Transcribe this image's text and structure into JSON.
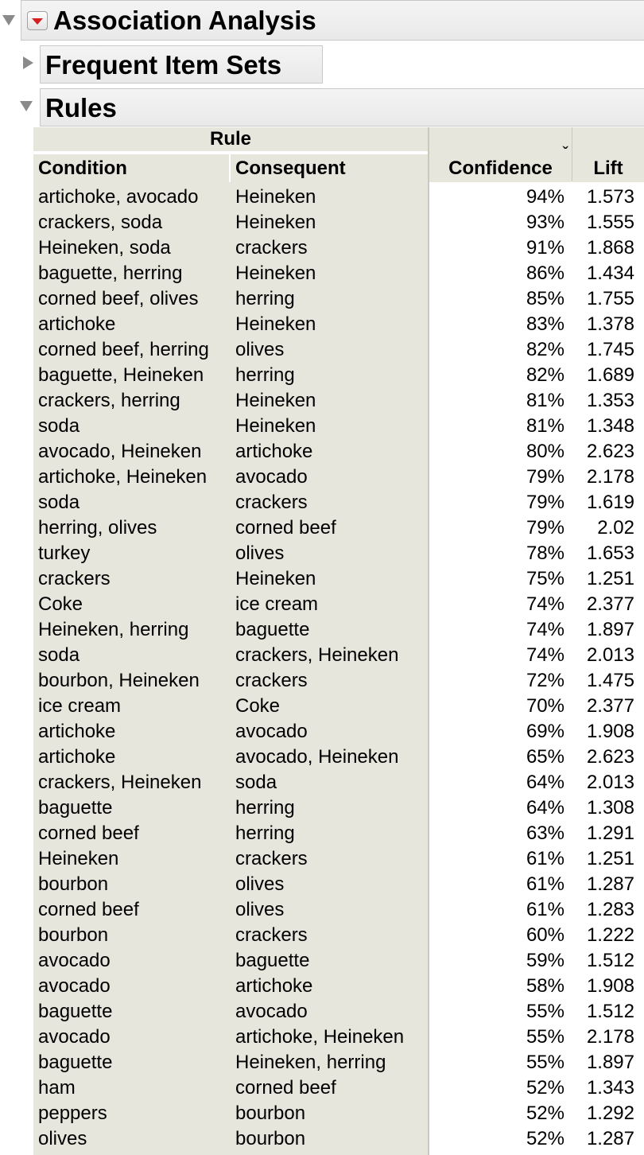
{
  "report": {
    "title": "Association Analysis",
    "sections": {
      "frequent_item_sets": "Frequent Item Sets",
      "rules": "Rules"
    }
  },
  "table": {
    "group_header": "Rule",
    "columns": {
      "condition": "Condition",
      "consequent": "Consequent",
      "confidence": "Confidence",
      "lift": "Lift"
    },
    "sort_indicator": "ˇ",
    "rows": [
      {
        "condition": "artichoke, avocado",
        "consequent": "Heineken",
        "confidence": "94%",
        "lift": "1.573"
      },
      {
        "condition": "crackers, soda",
        "consequent": "Heineken",
        "confidence": "93%",
        "lift": "1.555"
      },
      {
        "condition": "Heineken, soda",
        "consequent": "crackers",
        "confidence": "91%",
        "lift": "1.868"
      },
      {
        "condition": "baguette, herring",
        "consequent": "Heineken",
        "confidence": "86%",
        "lift": "1.434"
      },
      {
        "condition": "corned beef, olives",
        "consequent": "herring",
        "confidence": "85%",
        "lift": "1.755"
      },
      {
        "condition": "artichoke",
        "consequent": "Heineken",
        "confidence": "83%",
        "lift": "1.378"
      },
      {
        "condition": "corned beef, herring",
        "consequent": "olives",
        "confidence": "82%",
        "lift": "1.745"
      },
      {
        "condition": "baguette, Heineken",
        "consequent": "herring",
        "confidence": "82%",
        "lift": "1.689"
      },
      {
        "condition": "crackers, herring",
        "consequent": "Heineken",
        "confidence": "81%",
        "lift": "1.353"
      },
      {
        "condition": "soda",
        "consequent": "Heineken",
        "confidence": "81%",
        "lift": "1.348"
      },
      {
        "condition": "avocado, Heineken",
        "consequent": "artichoke",
        "confidence": "80%",
        "lift": "2.623"
      },
      {
        "condition": "artichoke, Heineken",
        "consequent": "avocado",
        "confidence": "79%",
        "lift": "2.178"
      },
      {
        "condition": "soda",
        "consequent": "crackers",
        "confidence": "79%",
        "lift": "1.619"
      },
      {
        "condition": "herring, olives",
        "consequent": "corned beef",
        "confidence": "79%",
        "lift": "2.02"
      },
      {
        "condition": "turkey",
        "consequent": "olives",
        "confidence": "78%",
        "lift": "1.653"
      },
      {
        "condition": "crackers",
        "consequent": "Heineken",
        "confidence": "75%",
        "lift": "1.251"
      },
      {
        "condition": "Coke",
        "consequent": "ice cream",
        "confidence": "74%",
        "lift": "2.377"
      },
      {
        "condition": "Heineken, herring",
        "consequent": "baguette",
        "confidence": "74%",
        "lift": "1.897"
      },
      {
        "condition": "soda",
        "consequent": "crackers, Heineken",
        "confidence": "74%",
        "lift": "2.013"
      },
      {
        "condition": "bourbon, Heineken",
        "consequent": "crackers",
        "confidence": "72%",
        "lift": "1.475"
      },
      {
        "condition": "ice cream",
        "consequent": "Coke",
        "confidence": "70%",
        "lift": "2.377"
      },
      {
        "condition": "artichoke",
        "consequent": "avocado",
        "confidence": "69%",
        "lift": "1.908"
      },
      {
        "condition": "artichoke",
        "consequent": "avocado, Heineken",
        "confidence": "65%",
        "lift": "2.623"
      },
      {
        "condition": "crackers, Heineken",
        "consequent": "soda",
        "confidence": "64%",
        "lift": "2.013"
      },
      {
        "condition": "baguette",
        "consequent": "herring",
        "confidence": "64%",
        "lift": "1.308"
      },
      {
        "condition": "corned beef",
        "consequent": "herring",
        "confidence": "63%",
        "lift": "1.291"
      },
      {
        "condition": "Heineken",
        "consequent": "crackers",
        "confidence": "61%",
        "lift": "1.251"
      },
      {
        "condition": "bourbon",
        "consequent": "olives",
        "confidence": "61%",
        "lift": "1.287"
      },
      {
        "condition": "corned beef",
        "consequent": "olives",
        "confidence": "61%",
        "lift": "1.283"
      },
      {
        "condition": "bourbon",
        "consequent": "crackers",
        "confidence": "60%",
        "lift": "1.222"
      },
      {
        "condition": "avocado",
        "consequent": "baguette",
        "confidence": "59%",
        "lift": "1.512"
      },
      {
        "condition": "avocado",
        "consequent": "artichoke",
        "confidence": "58%",
        "lift": "1.908"
      },
      {
        "condition": "baguette",
        "consequent": "avocado",
        "confidence": "55%",
        "lift": "1.512"
      },
      {
        "condition": "avocado",
        "consequent": "artichoke, Heineken",
        "confidence": "55%",
        "lift": "2.178"
      },
      {
        "condition": "baguette",
        "consequent": "Heineken, herring",
        "confidence": "55%",
        "lift": "1.897"
      },
      {
        "condition": "ham",
        "consequent": "corned beef",
        "confidence": "52%",
        "lift": "1.343"
      },
      {
        "condition": "peppers",
        "consequent": "bourbon",
        "confidence": "52%",
        "lift": "1.292"
      },
      {
        "condition": "olives",
        "consequent": "bourbon",
        "confidence": "52%",
        "lift": "1.287"
      }
    ]
  },
  "colors": {
    "header_bg": "#e6e6dc",
    "menu_arrow": "#d32222",
    "disclosure": "#8a8a8a"
  }
}
